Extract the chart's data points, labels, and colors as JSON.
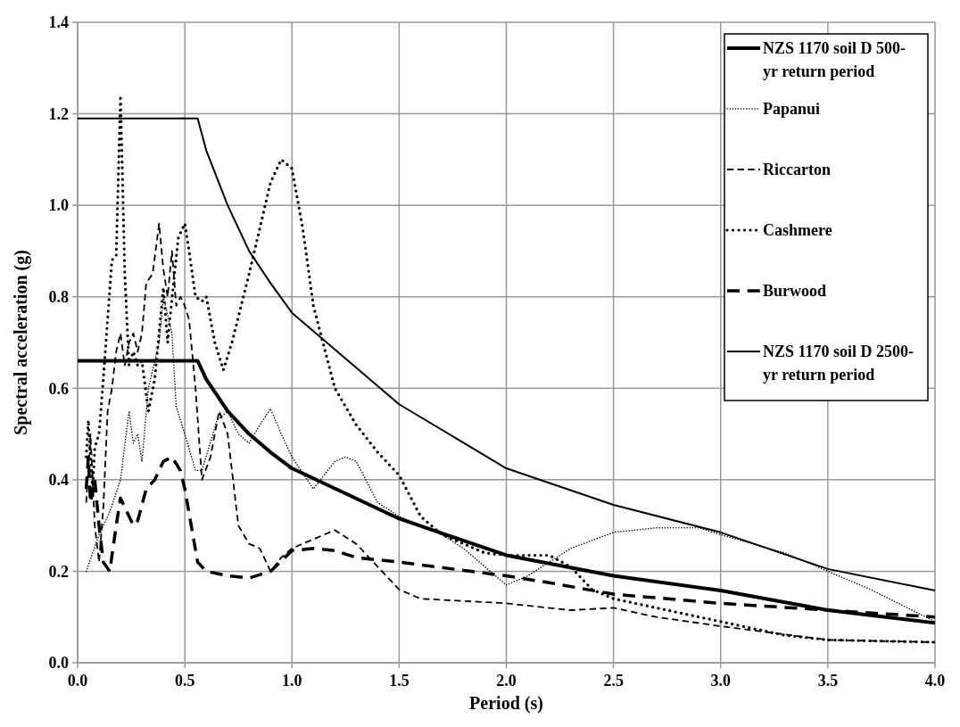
{
  "chart_data": {
    "type": "line",
    "xlabel": "Period (s)",
    "ylabel": "Spectral acceleration (g)",
    "xlim": [
      0,
      4
    ],
    "xticks": [
      {
        "value": 0,
        "label": "0.0"
      },
      {
        "value": 0.5,
        "label": "0.5"
      },
      {
        "value": 1,
        "label": "1.0"
      },
      {
        "value": 1.5,
        "label": "1.5"
      },
      {
        "value": 2,
        "label": "2.0"
      },
      {
        "value": 2.5,
        "label": "2.5"
      },
      {
        "value": 3,
        "label": "3.0"
      },
      {
        "value": 3.5,
        "label": "3.5"
      },
      {
        "value": 4,
        "label": "4.0"
      }
    ],
    "ylim": [
      0,
      1.4
    ],
    "yticks": [
      {
        "value": 0,
        "label": "0.0"
      },
      {
        "value": 0.2,
        "label": "0.2"
      },
      {
        "value": 0.4,
        "label": "0.4"
      },
      {
        "value": 0.6,
        "label": "0.6"
      },
      {
        "value": 0.8,
        "label": "0.8"
      },
      {
        "value": 1,
        "label": "1.0"
      },
      {
        "value": 1.2,
        "label": "1.2"
      },
      {
        "value": 1.4,
        "label": "1.4"
      }
    ],
    "grid": true,
    "legend": "top right",
    "marker": "none",
    "series": [
      {
        "name": "NZS 1170 soil D 500-yr return period",
        "color": "#000000",
        "line_style": "solid",
        "x": [
          0,
          0.56,
          0.6,
          0.7,
          0.8,
          0.9,
          1.0,
          1.5,
          2.0,
          2.5,
          3.0,
          3.5,
          4.0
        ],
        "values": [
          0.66,
          0.66,
          0.62,
          0.55,
          0.5,
          0.46,
          0.425,
          0.315,
          0.235,
          0.19,
          0.158,
          0.115,
          0.087
        ]
      },
      {
        "name": "Papanui",
        "color": "#000000",
        "line_style": "dotted",
        "x": [
          0.04,
          0.1,
          0.15,
          0.2,
          0.24,
          0.26,
          0.28,
          0.3,
          0.33,
          0.38,
          0.4,
          0.44,
          0.46,
          0.5,
          0.55,
          0.58,
          0.65,
          0.7,
          0.75,
          0.8,
          0.85,
          0.9,
          0.95,
          1.0,
          1.1,
          1.2,
          1.25,
          1.3,
          1.4,
          1.5,
          1.7,
          1.8,
          1.9,
          2.0,
          2.1,
          2.3,
          2.5,
          2.7,
          2.9,
          3.0,
          3.3,
          3.5,
          3.7,
          4.0
        ],
        "values": [
          0.2,
          0.28,
          0.33,
          0.4,
          0.55,
          0.48,
          0.5,
          0.44,
          0.6,
          0.7,
          0.8,
          0.72,
          0.56,
          0.5,
          0.42,
          0.42,
          0.53,
          0.55,
          0.5,
          0.48,
          0.52,
          0.555,
          0.5,
          0.45,
          0.38,
          0.44,
          0.45,
          0.44,
          0.35,
          0.32,
          0.28,
          0.25,
          0.21,
          0.17,
          0.19,
          0.25,
          0.285,
          0.295,
          0.295,
          0.28,
          0.24,
          0.2,
          0.16,
          0.09
        ]
      },
      {
        "name": "Riccarton",
        "color": "#000000",
        "line_style": "dashed",
        "x": [
          0.04,
          0.06,
          0.08,
          0.1,
          0.12,
          0.14,
          0.16,
          0.18,
          0.2,
          0.22,
          0.24,
          0.26,
          0.28,
          0.3,
          0.32,
          0.35,
          0.38,
          0.4,
          0.42,
          0.44,
          0.46,
          0.48,
          0.5,
          0.52,
          0.55,
          0.58,
          0.62,
          0.66,
          0.7,
          0.75,
          0.8,
          0.85,
          0.9,
          0.95,
          1.0,
          1.1,
          1.2,
          1.3,
          1.5,
          1.6,
          2.0,
          2.3,
          2.5,
          2.7,
          3.0,
          3.5,
          4.0
        ],
        "values": [
          0.35,
          0.5,
          0.3,
          0.22,
          0.34,
          0.55,
          0.6,
          0.68,
          0.72,
          0.65,
          0.7,
          0.72,
          0.68,
          0.72,
          0.83,
          0.85,
          0.96,
          0.86,
          0.8,
          0.9,
          0.78,
          0.8,
          0.78,
          0.75,
          0.6,
          0.4,
          0.45,
          0.55,
          0.5,
          0.3,
          0.26,
          0.25,
          0.2,
          0.23,
          0.25,
          0.27,
          0.29,
          0.26,
          0.16,
          0.14,
          0.13,
          0.115,
          0.12,
          0.1,
          0.08,
          0.05,
          0.045
        ]
      },
      {
        "name": "Cashmere",
        "color": "#000000",
        "line_style": "dotted",
        "x": [
          0.04,
          0.05,
          0.07,
          0.08,
          0.1,
          0.12,
          0.14,
          0.16,
          0.18,
          0.2,
          0.22,
          0.24,
          0.26,
          0.28,
          0.3,
          0.33,
          0.36,
          0.38,
          0.4,
          0.42,
          0.45,
          0.47,
          0.5,
          0.52,
          0.55,
          0.58,
          0.6,
          0.64,
          0.68,
          0.72,
          0.8,
          0.9,
          0.95,
          1.0,
          1.05,
          1.1,
          1.2,
          1.3,
          1.4,
          1.5,
          1.6,
          1.7,
          1.8,
          1.9,
          2.0,
          2.2,
          2.3,
          2.4,
          2.5,
          2.7,
          3.0,
          3.3,
          3.5,
          4.0
        ],
        "values": [
          0.45,
          0.53,
          0.38,
          0.47,
          0.5,
          0.62,
          0.75,
          0.88,
          0.89,
          1.24,
          0.85,
          0.65,
          0.68,
          0.65,
          0.66,
          0.55,
          0.62,
          0.72,
          0.82,
          0.7,
          0.84,
          0.93,
          0.96,
          0.9,
          0.8,
          0.79,
          0.8,
          0.7,
          0.64,
          0.7,
          0.85,
          1.05,
          1.1,
          1.08,
          0.95,
          0.78,
          0.6,
          0.52,
          0.46,
          0.41,
          0.32,
          0.28,
          0.26,
          0.24,
          0.235,
          0.235,
          0.21,
          0.16,
          0.14,
          0.12,
          0.09,
          0.06,
          0.05,
          0.045
        ]
      },
      {
        "name": "Burwood",
        "color": "#000000",
        "line_style": "dashed",
        "x": [
          0.04,
          0.05,
          0.06,
          0.08,
          0.1,
          0.12,
          0.15,
          0.18,
          0.2,
          0.22,
          0.26,
          0.28,
          0.32,
          0.36,
          0.4,
          0.44,
          0.48,
          0.5,
          0.53,
          0.56,
          0.6,
          0.7,
          0.8,
          0.9,
          1.0,
          1.1,
          1.2,
          1.3,
          1.5,
          2.0,
          2.2,
          2.5,
          3.0,
          3.5,
          4.0
        ],
        "values": [
          0.38,
          0.45,
          0.35,
          0.4,
          0.3,
          0.22,
          0.2,
          0.3,
          0.36,
          0.34,
          0.3,
          0.31,
          0.38,
          0.4,
          0.44,
          0.45,
          0.42,
          0.38,
          0.3,
          0.22,
          0.2,
          0.19,
          0.185,
          0.2,
          0.245,
          0.25,
          0.245,
          0.23,
          0.22,
          0.19,
          0.175,
          0.15,
          0.13,
          0.115,
          0.1
        ]
      },
      {
        "name": "NZS 1170 soil D 2500-yr return period",
        "color": "#000000",
        "line_style": "solid",
        "x": [
          0,
          0.56,
          0.6,
          0.7,
          0.8,
          0.9,
          1.0,
          1.5,
          2.0,
          2.5,
          3.0,
          3.5,
          4.0
        ],
        "values": [
          1.19,
          1.19,
          1.12,
          1.0,
          0.9,
          0.83,
          0.765,
          0.565,
          0.425,
          0.345,
          0.285,
          0.205,
          0.158
        ]
      }
    ]
  }
}
